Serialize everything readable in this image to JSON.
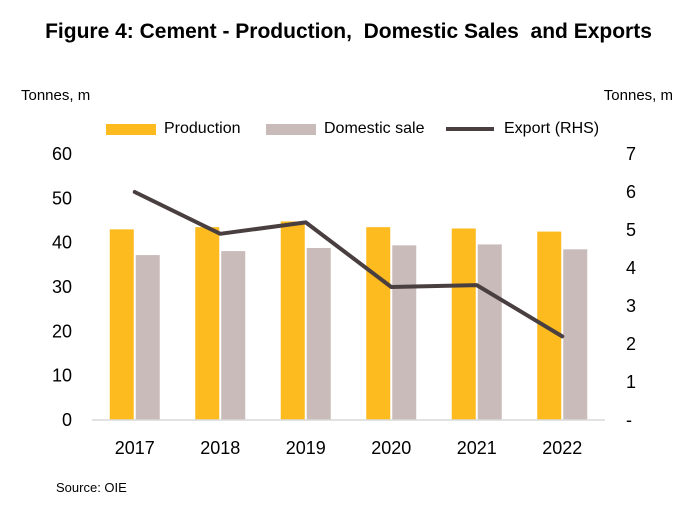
{
  "title": "Figure 4: Cement - Production,  Domestic Sales  and Exports",
  "units": {
    "left": "Tonnes, m",
    "right": "Tonnes, m"
  },
  "source": "Source: OIE",
  "colors": {
    "production": "#FDBB1F",
    "domestic": "#C9BBB9",
    "export": "#4A3F40",
    "axis": "#D9D9D9"
  },
  "chart_data": {
    "type": "bar",
    "categories": [
      "2017",
      "2018",
      "2019",
      "2020",
      "2021",
      "2022"
    ],
    "series": [
      {
        "name": "Production",
        "type": "bar",
        "axis": "left",
        "values": [
          43.0,
          43.5,
          44.8,
          43.5,
          43.2,
          42.5
        ]
      },
      {
        "name": "Domestic sale",
        "type": "bar",
        "axis": "left",
        "values": [
          37.2,
          38.1,
          38.8,
          39.4,
          39.6,
          38.5
        ]
      },
      {
        "name": "Export (RHS)",
        "type": "line",
        "axis": "right",
        "values": [
          6.0,
          4.9,
          5.2,
          3.5,
          3.55,
          2.2
        ]
      }
    ],
    "ylim_left": [
      0,
      60
    ],
    "yticks_left": [
      "0",
      "10",
      "20",
      "30",
      "40",
      "50",
      "60"
    ],
    "ylim_right": [
      0,
      7
    ],
    "yticks_right": [
      "-",
      "1",
      "2",
      "3",
      "4",
      "5",
      "6",
      "7"
    ],
    "grid": false,
    "legend": "top"
  }
}
